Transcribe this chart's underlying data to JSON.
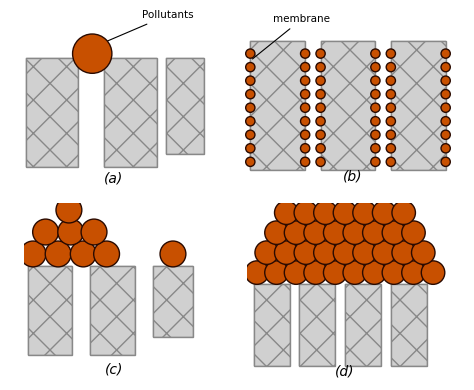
{
  "bg_color": "#ffffff",
  "membrane_color": "#d0d0d0",
  "membrane_edge_color": "#888888",
  "pollutant_face": "#c85000",
  "pollutant_edge": "#2a0a00",
  "text_color": "#000000",
  "label_a": "(a)",
  "label_b": "(b)",
  "label_c": "(c)",
  "label_d": "(d)",
  "label_pollutants": "Pollutants",
  "label_membrane": "membrane"
}
